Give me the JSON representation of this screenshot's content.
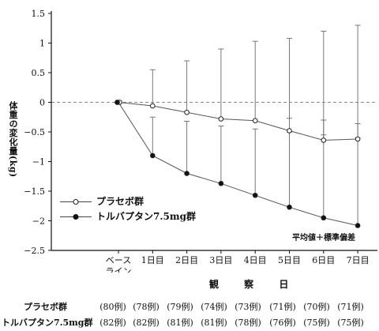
{
  "chart_data": {
    "type": "line",
    "ylabel": "体重の変化量(kg)",
    "xlabel": "観 察 日",
    "ylim": [
      -2.5,
      1.5
    ],
    "yticks": [
      1.5,
      1,
      0.5,
      0,
      -0.5,
      -1,
      -1.5,
      -2,
      -2.5
    ],
    "ytick_labels": [
      "1.5",
      "1",
      "0.5",
      "0",
      "−0.5",
      "−1",
      "−1.5",
      "−2",
      "−2.5"
    ],
    "categories": [
      [
        "ベース",
        "ライン"
      ],
      [
        "1日目"
      ],
      [
        "2日目"
      ],
      [
        "3日目"
      ],
      [
        "4日目"
      ],
      [
        "5日目"
      ],
      [
        "6日目"
      ],
      [
        "7日目"
      ]
    ],
    "reference_line": 0,
    "note": "平均値＋標準偏差",
    "legend_position": "lower-left",
    "series": [
      {
        "name": "プラセボ群",
        "marker": "open-circle",
        "mean": [
          0,
          -0.06,
          -0.17,
          -0.28,
          -0.31,
          -0.48,
          -0.64,
          -0.62
        ],
        "sd_upper": [
          0,
          0.55,
          0.7,
          0.9,
          1.03,
          1.08,
          1.2,
          1.3
        ],
        "sd_lower": [
          0,
          null,
          null,
          null,
          null,
          -0.27,
          -0.3,
          -0.36
        ],
        "n": [
          "(80例)",
          "(78例)",
          "(79例)",
          "(74例)",
          "(73例)",
          "(71例)",
          "(70例)",
          "(71例)"
        ]
      },
      {
        "name": "トルバプタン7.5mg群",
        "marker": "filled-circle",
        "mean": [
          0,
          -0.9,
          -1.2,
          -1.37,
          -1.57,
          -1.77,
          -1.95,
          -2.08
        ],
        "sd_upper": [
          0,
          -0.25,
          -0.32,
          -0.4,
          -0.45,
          -0.5,
          -0.55,
          -0.6
        ],
        "n": [
          "(82例)",
          "(82例)",
          "(81例)",
          "(81例)",
          "(78例)",
          "(76例)",
          "(75例)",
          "(75例)"
        ]
      }
    ]
  }
}
